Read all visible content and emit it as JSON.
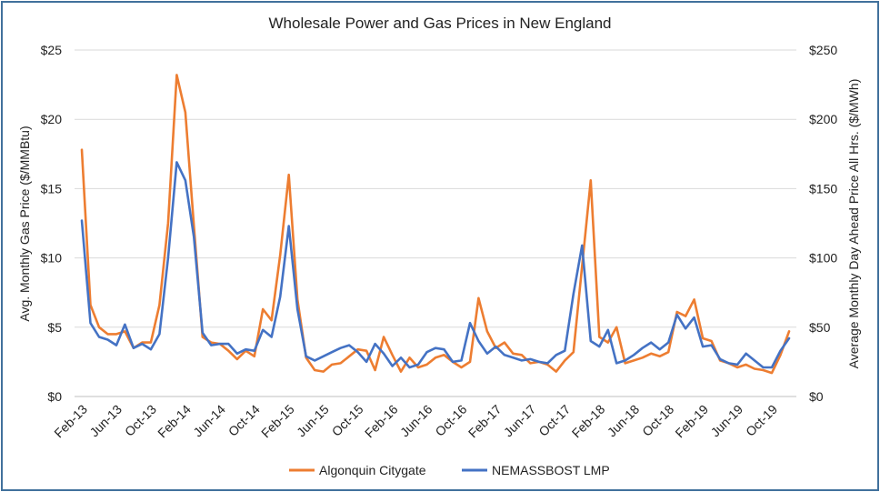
{
  "chart_data": {
    "type": "line",
    "title": "Wholesale Power and Gas Prices in New England",
    "ylabel_left": "Avg. Monthly Gas Price ($/MMBtu)",
    "ylabel_right": "Average Monthly Day Ahead Price All Hrs. ($/MWh)",
    "y_left_range": [
      0,
      25
    ],
    "y_right_range": [
      0,
      250
    ],
    "y_left_ticks": [
      "$0",
      "$5",
      "$10",
      "$15",
      "$20",
      "$25"
    ],
    "y_right_ticks": [
      "$0",
      "$50",
      "$100",
      "$150",
      "$200",
      "$250"
    ],
    "x_tick_labels": [
      "Feb-13",
      "Jun-13",
      "Oct-13",
      "Feb-14",
      "Jun-14",
      "Oct-14",
      "Feb-15",
      "Jun-15",
      "Oct-15",
      "Feb-16",
      "Jun-16",
      "Oct-16",
      "Feb-17",
      "Jun-17",
      "Oct-17",
      "Feb-18",
      "Jun-18",
      "Oct-18",
      "Feb-19",
      "Jun-19",
      "Oct-19"
    ],
    "x_start": "Feb-13",
    "months": 83,
    "gridlines": "horizontal",
    "legend_position": "bottom",
    "series": [
      {
        "name": "Algonquin Citygate",
        "axis": "left",
        "color": "#ed7d31",
        "values": [
          17.8,
          6.6,
          5.0,
          4.5,
          4.5,
          4.7,
          3.5,
          3.9,
          3.9,
          6.6,
          12.5,
          23.2,
          20.5,
          12.3,
          4.3,
          3.9,
          3.8,
          3.3,
          2.7,
          3.3,
          2.9,
          6.3,
          5.5,
          10.2,
          16.0,
          7.0,
          2.8,
          1.9,
          1.8,
          2.3,
          2.4,
          2.9,
          3.4,
          3.3,
          1.9,
          4.3,
          3.0,
          1.8,
          2.8,
          2.1,
          2.3,
          2.8,
          3.0,
          2.5,
          2.1,
          2.5,
          7.1,
          4.7,
          3.5,
          3.9,
          3.1,
          3.0,
          2.4,
          2.5,
          2.3,
          1.8,
          2.6,
          3.2,
          9.4,
          15.6,
          4.3,
          3.9,
          5.0,
          2.4,
          2.6,
          2.8,
          3.1,
          2.9,
          3.2,
          6.1,
          5.8,
          7.0,
          4.2,
          4.0,
          2.6,
          2.4,
          2.1,
          2.3,
          2.0,
          1.9,
          1.7,
          3.0,
          4.7
        ]
      },
      {
        "name": "NEMASSBOST LMP",
        "axis": "right",
        "color": "#4472c4",
        "values": [
          127,
          53,
          43,
          41,
          37,
          52,
          35,
          38,
          34,
          45,
          100,
          169,
          156,
          115,
          46,
          37,
          38,
          38,
          31,
          34,
          33,
          48,
          43,
          72,
          123,
          63,
          29,
          26,
          29,
          32,
          35,
          37,
          32,
          25,
          38,
          31,
          22,
          28,
          21,
          23,
          32,
          35,
          34,
          25,
          26,
          53,
          40,
          31,
          36,
          30,
          28,
          26,
          27,
          25,
          24,
          30,
          33,
          74,
          109,
          40,
          36,
          48,
          24,
          26,
          30,
          35,
          39,
          34,
          39,
          59,
          49,
          57,
          36,
          37,
          27,
          24,
          23,
          31,
          26,
          21,
          21,
          33,
          42
        ]
      }
    ]
  }
}
